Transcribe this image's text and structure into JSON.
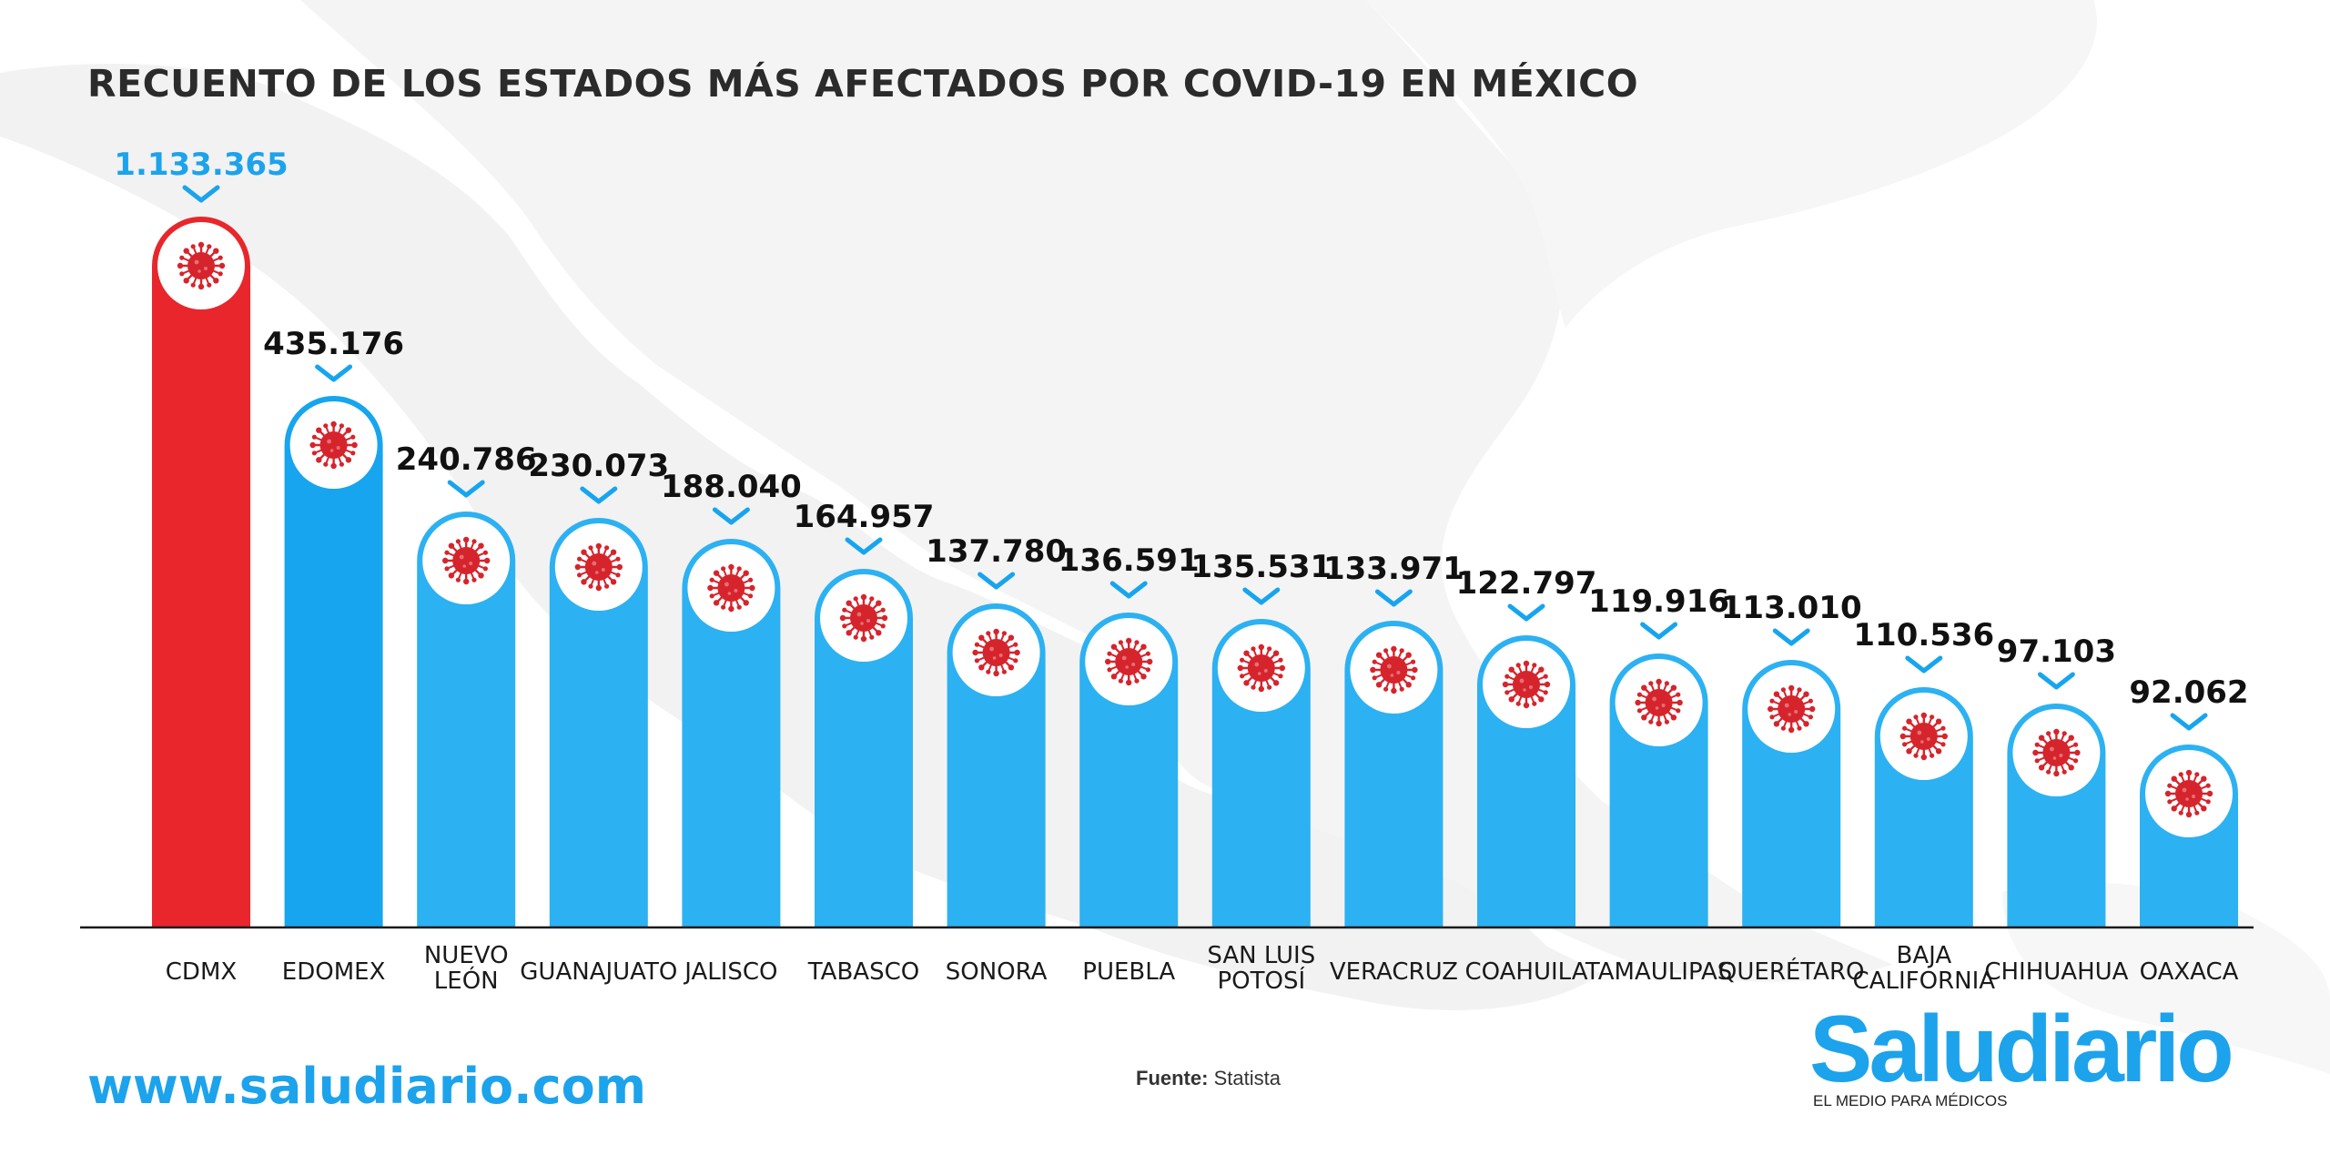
{
  "title": "RECUENTO DE LOS ESTADOS MÁS AFECTADOS POR COVID-19 EN MÉXICO",
  "footer": {
    "website": "www.saludiario.com",
    "source_label": "Fuente:",
    "source_value": "Statista"
  },
  "logo": {
    "name": "Saludiario",
    "tagline": "EL MEDIO PARA MÉDICOS"
  },
  "colors": {
    "highlight": "#e8262b",
    "bar": "#2cb1f2",
    "bar_edomex": "#16a5ee",
    "virus": "#d6242c",
    "value_highlight": "#1ca3ec",
    "value": "#111111"
  },
  "chart_data": {
    "type": "bar",
    "title": "RECUENTO DE LOS ESTADOS MÁS AFECTADOS POR COVID-19 EN MÉXICO",
    "categories": [
      "CDMX",
      "EDOMEX",
      "NUEVO LEÓN",
      "GUANAJUATO",
      "JALISCO",
      "TABASCO",
      "SONORA",
      "PUEBLA",
      "SAN LUIS POTOSÍ",
      "VERACRUZ",
      "COAHUILA",
      "TAMAULIPAS",
      "QUERÉTARO",
      "BAJA CALIFORNIA",
      "CHIHUAHUA",
      "OAXACA"
    ],
    "category_lines": [
      [
        "CDMX"
      ],
      [
        "EDOMEX"
      ],
      [
        "NUEVO",
        "LEÓN"
      ],
      [
        "GUANAJUATO"
      ],
      [
        "JALISCO"
      ],
      [
        "TABASCO"
      ],
      [
        "SONORA"
      ],
      [
        "PUEBLA"
      ],
      [
        "SAN LUIS",
        "POTOSÍ"
      ],
      [
        "VERACRUZ"
      ],
      [
        "COAHUILA"
      ],
      [
        "TAMAULIPAS"
      ],
      [
        "QUERÉTARO"
      ],
      [
        "BAJA",
        "CALIFORNIA"
      ],
      [
        "CHIHUAHUA"
      ],
      [
        "OAXACA"
      ]
    ],
    "values": [
      1133365,
      435176,
      240786,
      230073,
      188040,
      164957,
      137780,
      136591,
      135531,
      133971,
      122797,
      119916,
      113010,
      110536,
      97103,
      92062
    ],
    "value_labels": [
      "1.133.365",
      "435.176",
      "240.786",
      "230.073",
      "188.040",
      "164.957",
      "137.780",
      "136.591",
      "135.531",
      "133.971",
      "122.797",
      "119.916",
      "113.010",
      "110.536",
      "97.103",
      "92.062"
    ],
    "highlight_index": 0,
    "xlabel": "",
    "ylabel": "",
    "grid": false,
    "legend": "none"
  }
}
